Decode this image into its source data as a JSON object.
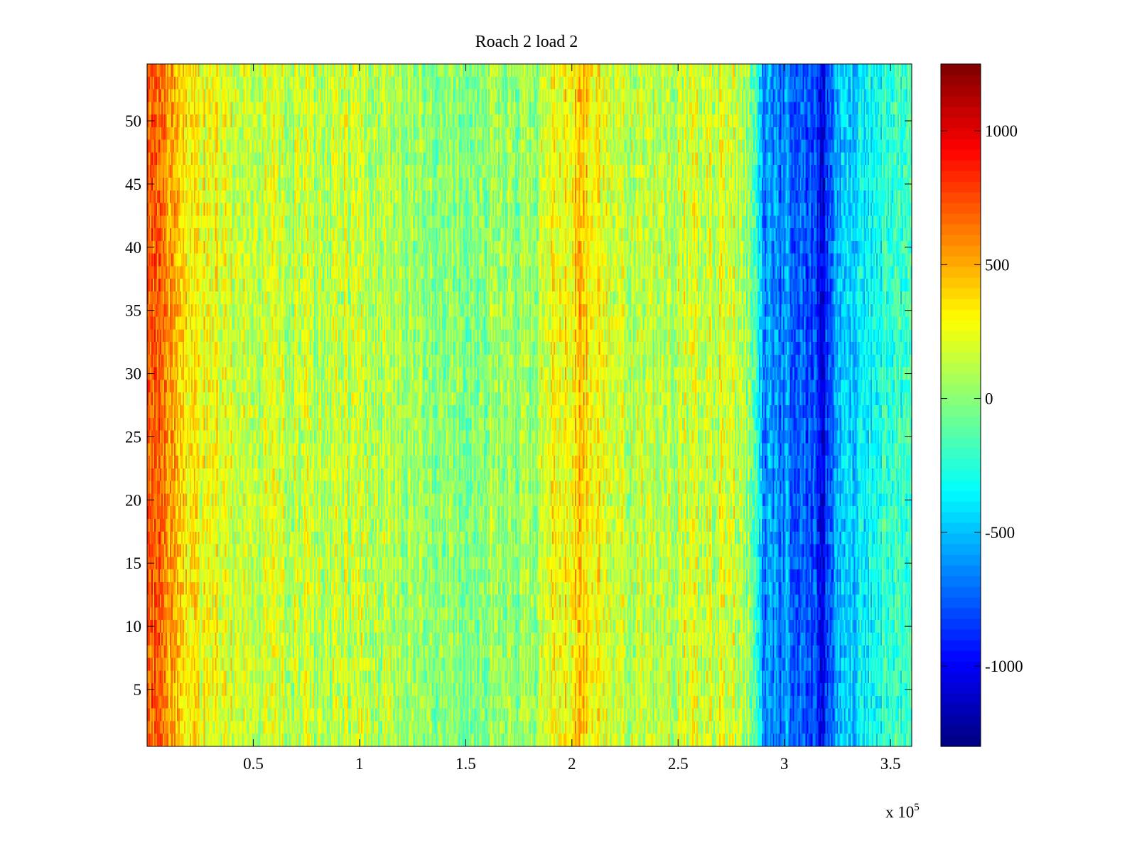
{
  "chart_data": {
    "type": "heatmap",
    "title": "Roach 2 load 2",
    "xlabel": "",
    "ylabel": "",
    "x_exponent_label": "x 10",
    "x_exponent_power": "5",
    "xlim": [
      0,
      3.6
    ],
    "ylim": [
      0.5,
      54.5
    ],
    "x_ticks": [
      0.5,
      1,
      1.5,
      2,
      2.5,
      3,
      3.5
    ],
    "x_tick_labels": [
      "0.5",
      "1",
      "1.5",
      "2",
      "2.5",
      "3",
      "3.5"
    ],
    "y_ticks": [
      5,
      10,
      15,
      20,
      25,
      30,
      35,
      40,
      45,
      50
    ],
    "y_tick_labels": [
      "5",
      "10",
      "15",
      "20",
      "25",
      "30",
      "35",
      "40",
      "45",
      "50"
    ],
    "rows": 54,
    "colormap": "jet",
    "color_range": [
      -1300,
      1250
    ],
    "colorbar_ticks": [
      1000,
      500,
      0,
      -500,
      -1000
    ],
    "colorbar_tick_labels": [
      "1000",
      "500",
      "0",
      "-500",
      "-1000"
    ],
    "column_profile": {
      "x": [
        0,
        0.03,
        0.1,
        0.2,
        0.3,
        0.5,
        0.8,
        1.0,
        1.2,
        1.5,
        1.8,
        2.0,
        2.05,
        2.2,
        2.5,
        2.75,
        2.85,
        2.9,
        3.0,
        3.15,
        3.18,
        3.25,
        3.4,
        3.6
      ],
      "mean_value": [
        720,
        700,
        500,
        330,
        250,
        150,
        120,
        150,
        60,
        0,
        50,
        350,
        420,
        130,
        150,
        200,
        0,
        -600,
        -650,
        -800,
        -1000,
        -500,
        -300,
        -150
      ]
    },
    "noise_amplitude": 230,
    "grid": false,
    "colorbar_position": "right"
  }
}
